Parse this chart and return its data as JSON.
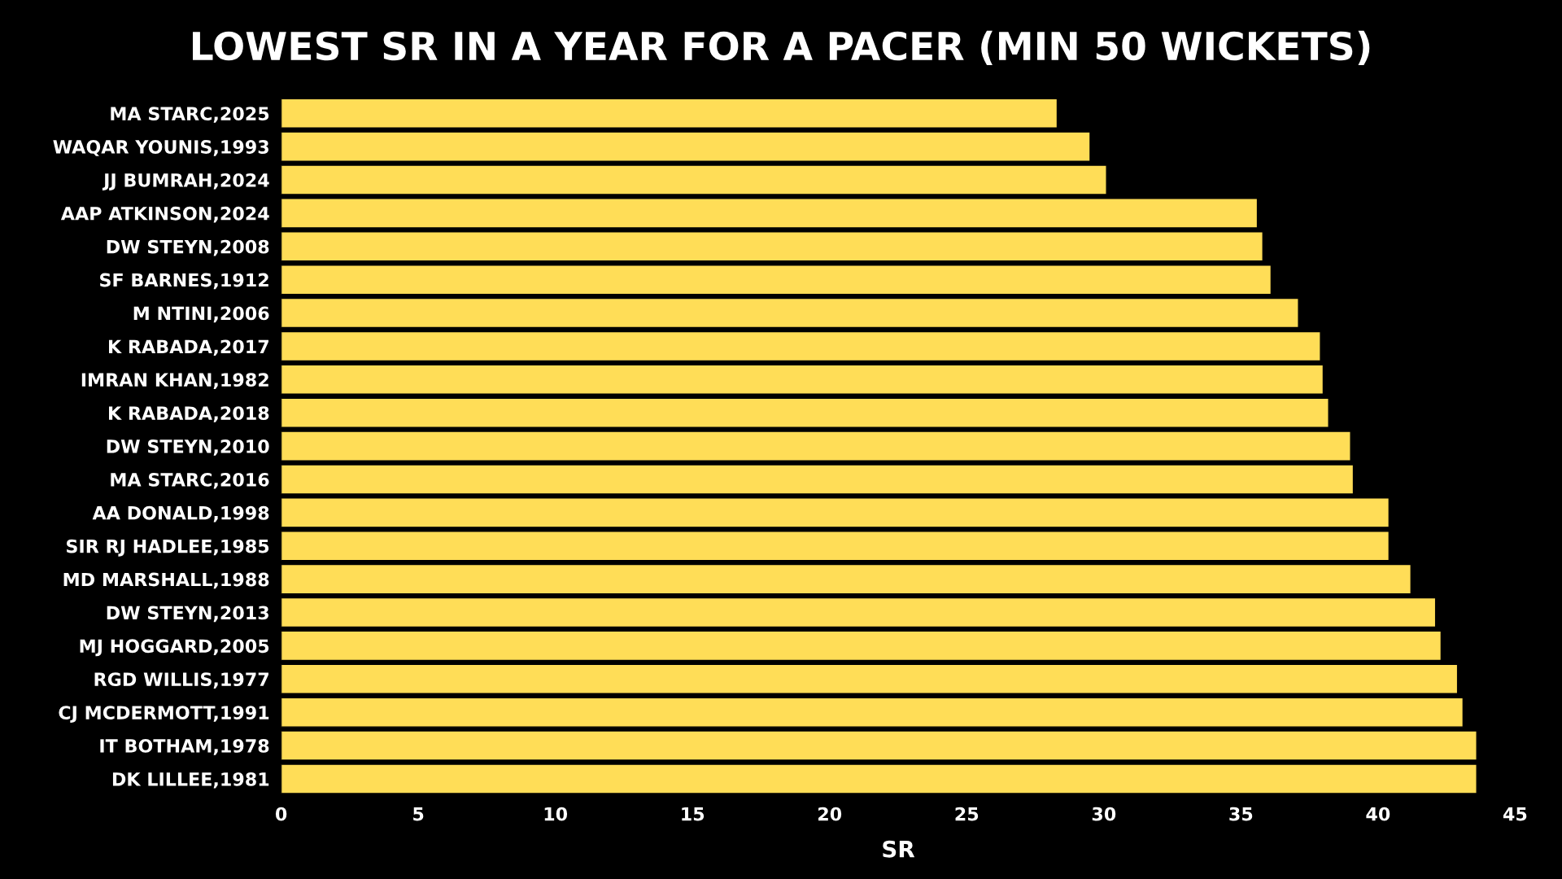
{
  "chart_data": {
    "type": "bar",
    "orientation": "horizontal",
    "title": "LOWEST SR IN A YEAR FOR A PACER (MIN 50 WICKETS)",
    "xlabel": "SR",
    "categories": [
      "MA STARC,2025",
      "WAQAR YOUNIS,1993",
      "JJ BUMRAH,2024",
      "AAP ATKINSON,2024",
      "DW STEYN,2008",
      "SF BARNES,1912",
      "M NTINI,2006",
      "K RABADA,2017",
      "IMRAN KHAN,1982",
      "K RABADA,2018",
      "DW STEYN,2010",
      "MA STARC,2016",
      "AA DONALD,1998",
      "SIR RJ HADLEE,1985",
      "MD MARSHALL,1988",
      "DW STEYN,2013",
      "MJ HOGGARD,2005",
      "RGD WILLIS,1977",
      "CJ MCDERMOTT,1991",
      "IT BOTHAM,1978",
      "DK LILLEE,1981"
    ],
    "values": [
      28.3,
      29.5,
      30.1,
      35.6,
      35.8,
      36.1,
      37.1,
      37.9,
      38.0,
      38.2,
      39.0,
      39.1,
      40.4,
      40.4,
      41.2,
      42.1,
      42.3,
      42.9,
      43.1,
      43.6,
      43.6
    ],
    "color": "#ffdd57",
    "xlim": [
      0,
      45
    ],
    "xticks": [
      0,
      5,
      10,
      15,
      20,
      25,
      30,
      35,
      40,
      45
    ],
    "grid": false
  }
}
